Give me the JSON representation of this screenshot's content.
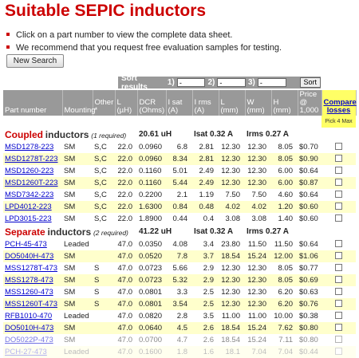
{
  "title": "Suitable SEPIC inductors",
  "bullets": [
    "Click on a part number to view the complete data sheet.",
    "We recommend that you request free evaluation samples for testing."
  ],
  "new_search": "New Search",
  "sort": {
    "label": "Sort results",
    "slots": [
      "1)",
      "2)",
      "3)"
    ],
    "option": "-",
    "button": "Sort"
  },
  "headers": [
    "Part number",
    "Mounting",
    "Other *",
    "L (µH)",
    "DCR (Ohms)",
    "I sat (A)",
    "I rms (A)",
    "L (mm)",
    "W (mm)",
    "H (mm)",
    "Price @ 1,000",
    "Compare losses"
  ],
  "pick": "Pick 4 Max",
  "sections": [
    {
      "name": "Coupled",
      "word": "inductors",
      "required": "(1 required)",
      "inductance": "20.61 uH",
      "isat": "Isat 0.32 A",
      "irms": "Irms 0.27 A",
      "rows": [
        [
          "MSD1278-223",
          "SM",
          "S,C",
          "22.0",
          "0.0960",
          "6.8",
          "2.81",
          "12.30",
          "12.30",
          "8.05",
          "$0.70"
        ],
        [
          "MSD1278T-223",
          "SM",
          "S,C",
          "22.0",
          "0.0960",
          "8.34",
          "2.81",
          "12.30",
          "12.30",
          "8.05",
          "$0.90"
        ],
        [
          "MSD1260-223",
          "SM",
          "S,C",
          "22.0",
          "0.1160",
          "5.01",
          "2.49",
          "12.30",
          "12.30",
          "6.00",
          "$0.64"
        ],
        [
          "MSD1260T-223",
          "SM",
          "S,C",
          "22.0",
          "0.1160",
          "5.44",
          "2.49",
          "12.30",
          "12.30",
          "6.00",
          "$0.87"
        ],
        [
          "MSD7342-223",
          "SM",
          "S,C",
          "22.0",
          "0.2200",
          "2.1",
          "1.19",
          "7.50",
          "7.50",
          "4.60",
          "$0.64"
        ],
        [
          "LPD4012-223",
          "SM",
          "S,C",
          "22.0",
          "1.6300",
          "0.84",
          "0.48",
          "4.02",
          "4.02",
          "1.20",
          "$0.60"
        ],
        [
          "LPD3015-223",
          "SM",
          "S,C",
          "22.0",
          "1.8900",
          "0.44",
          "0.4",
          "3.08",
          "3.08",
          "1.40",
          "$0.60"
        ]
      ]
    },
    {
      "name": "Separate",
      "word": "inductors",
      "required": "(2 required)",
      "inductance": "41.22 uH",
      "isat": "Isat 0.32 A",
      "irms": "Irms 0.27 A",
      "rows": [
        [
          "PCH-45-473",
          "Leaded",
          "",
          "47.0",
          "0.0350",
          "4.08",
          "3.4",
          "23.80",
          "11.50",
          "11.50",
          "$0.64"
        ],
        [
          "DO5040H-473",
          "SM",
          "",
          "47.0",
          "0.0520",
          "7.8",
          "3.7",
          "18.54",
          "15.24",
          "12.00",
          "$1.06"
        ],
        [
          "MSS1278T-473",
          "SM",
          "S",
          "47.0",
          "0.0723",
          "5.66",
          "2.9",
          "12.30",
          "12.30",
          "8.05",
          "$0.77"
        ],
        [
          "MSS1278-473",
          "SM",
          "S",
          "47.0",
          "0.0723",
          "5.32",
          "2.9",
          "12.30",
          "12.30",
          "8.05",
          "$0.69"
        ],
        [
          "MSS1260-473",
          "SM",
          "S",
          "47.0",
          "0.0801",
          "3.3",
          "2.5",
          "12.30",
          "12.30",
          "6.20",
          "$0.63"
        ],
        [
          "MSS1260T-473",
          "SM",
          "S",
          "47.0",
          "0.0801",
          "3.54",
          "2.5",
          "12.30",
          "12.30",
          "6.20",
          "$0.76"
        ],
        [
          "RFB1010-470",
          "Leaded",
          "",
          "47.0",
          "0.0820",
          "2.8",
          "3.5",
          "11.00",
          "11.00",
          "10.00",
          "$0.38"
        ],
        [
          "DO5010H-473",
          "SM",
          "",
          "47.0",
          "0.0640",
          "4.5",
          "2.6",
          "18.54",
          "15.24",
          "7.62",
          "$0.80"
        ],
        [
          "DO5022P-473",
          "SM",
          "",
          "47.0",
          "0.0700",
          "4.7",
          "2.6",
          "18.54",
          "15.24",
          "7.11",
          "$0.80"
        ],
        [
          "PCH-27-473",
          "Leaded",
          "",
          "47.0",
          "0.1600",
          "1.8",
          "1.6",
          "18.1",
          "7.04",
          "7.04",
          "$0.44"
        ]
      ]
    }
  ]
}
